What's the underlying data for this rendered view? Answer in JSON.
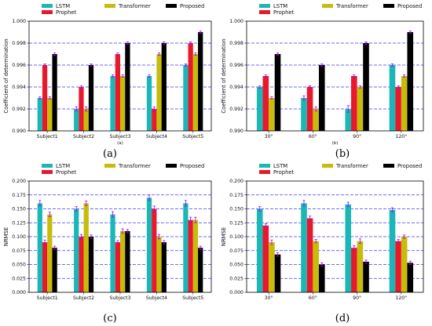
{
  "colors": {
    "LSTM": "#1bb7b7",
    "Prophet": "#e8192c",
    "Transformer": "#c8bc0a",
    "Proposed": "#000000",
    "grid": "#3a3aff",
    "errorbar": "#b000ff"
  },
  "chart_data": [
    {
      "id": "a",
      "type": "bar",
      "caption": "(a)",
      "sublabel": "(a)",
      "ylabel": "Coefficient of determination",
      "ylim": [
        0.99,
        1.0
      ],
      "yticks": [
        "0.990",
        "0.992",
        "0.994",
        "0.996",
        "0.998",
        "1.000"
      ],
      "ytick_values": [
        0.99,
        0.992,
        0.994,
        0.996,
        0.998,
        1.0
      ],
      "categories": [
        "Subject1",
        "Subject2",
        "Subject3",
        "Subject4",
        "Subject5"
      ],
      "series": [
        {
          "name": "LSTM",
          "values": [
            0.993,
            0.992,
            0.995,
            0.995,
            0.996
          ],
          "err": [
            0.0001,
            0.0002,
            0.0001,
            0.0001,
            0.0001
          ]
        },
        {
          "name": "Prophet",
          "values": [
            0.996,
            0.994,
            0.997,
            0.992,
            0.998
          ],
          "err": [
            0.0001,
            0.0001,
            0.0001,
            0.0002,
            0.0001
          ]
        },
        {
          "name": "Transformer",
          "values": [
            0.993,
            0.992,
            0.995,
            0.997,
            0.997
          ],
          "err": [
            0.0001,
            0.0002,
            0.0001,
            0.0001,
            0.0001
          ]
        },
        {
          "name": "Proposed",
          "values": [
            0.997,
            0.996,
            0.998,
            0.998,
            0.999
          ],
          "err": [
            0.0001,
            0.0001,
            0.0001,
            0.0001,
            0.0001
          ]
        }
      ],
      "grid": true,
      "legend": "top"
    },
    {
      "id": "b",
      "type": "bar",
      "caption": "(b)",
      "sublabel": "(b)",
      "ylabel": "Coefficient of determination",
      "ylim": [
        0.99,
        1.0
      ],
      "yticks": [
        "0.990",
        "0.992",
        "0.994",
        "0.996",
        "0.998",
        "1.000"
      ],
      "ytick_values": [
        0.99,
        0.992,
        0.994,
        0.996,
        0.998,
        1.0
      ],
      "categories": [
        "30°",
        "60°",
        "90°",
        "120°"
      ],
      "series": [
        {
          "name": "LSTM",
          "values": [
            0.994,
            0.993,
            0.992,
            0.996
          ],
          "err": [
            0.0001,
            0.0002,
            0.0003,
            0.0001
          ]
        },
        {
          "name": "Prophet",
          "values": [
            0.995,
            0.994,
            0.995,
            0.994
          ],
          "err": [
            0.0001,
            0.0001,
            0.0001,
            0.0001
          ]
        },
        {
          "name": "Transformer",
          "values": [
            0.993,
            0.992,
            0.994,
            0.995
          ],
          "err": [
            0.0001,
            0.0002,
            0.0001,
            0.0001
          ]
        },
        {
          "name": "Proposed",
          "values": [
            0.997,
            0.996,
            0.998,
            0.999
          ],
          "err": [
            0.0001,
            0.0001,
            0.0001,
            0.0001
          ]
        }
      ],
      "grid": true,
      "legend": "top"
    },
    {
      "id": "c",
      "type": "bar",
      "caption": "(c)",
      "ylabel": "NRMSE",
      "ylim": [
        0.0,
        0.2
      ],
      "yticks": [
        "0.000",
        "0.025",
        "0.050",
        "0.075",
        "0.100",
        "0.125",
        "0.150",
        "0.175",
        "0.200"
      ],
      "ytick_values": [
        0.0,
        0.025,
        0.05,
        0.075,
        0.1,
        0.125,
        0.15,
        0.175,
        0.2
      ],
      "categories": [
        "Subject1",
        "Subject2",
        "Subject3",
        "Subject4",
        "Subject5"
      ],
      "series": [
        {
          "name": "LSTM",
          "values": [
            0.16,
            0.15,
            0.14,
            0.17,
            0.16
          ],
          "err": [
            0.005,
            0.004,
            0.005,
            0.005,
            0.005
          ]
        },
        {
          "name": "Prophet",
          "values": [
            0.09,
            0.1,
            0.09,
            0.15,
            0.13
          ],
          "err": [
            0.004,
            0.004,
            0.003,
            0.005,
            0.005
          ]
        },
        {
          "name": "Transformer",
          "values": [
            0.14,
            0.16,
            0.11,
            0.1,
            0.13
          ],
          "err": [
            0.004,
            0.004,
            0.004,
            0.004,
            0.005
          ]
        },
        {
          "name": "Proposed",
          "values": [
            0.08,
            0.1,
            0.11,
            0.09,
            0.08
          ],
          "err": [
            0.003,
            0.003,
            0.003,
            0.003,
            0.003
          ]
        }
      ],
      "grid": true,
      "legend": "top"
    },
    {
      "id": "d",
      "type": "bar",
      "caption": "(d)",
      "ylabel": "NRMSE",
      "ylim": [
        0.0,
        0.2
      ],
      "yticks": [
        "0.000",
        "0.025",
        "0.050",
        "0.075",
        "0.100",
        "0.125",
        "0.150",
        "0.175",
        "0.200"
      ],
      "ytick_values": [
        0.0,
        0.025,
        0.05,
        0.075,
        0.1,
        0.125,
        0.15,
        0.175,
        0.2
      ],
      "categories": [
        "30°",
        "60°",
        "90°",
        "120°"
      ],
      "series": [
        {
          "name": "LSTM",
          "values": [
            0.15,
            0.16,
            0.158,
            0.148
          ],
          "err": [
            0.004,
            0.005,
            0.004,
            0.004
          ]
        },
        {
          "name": "Prophet",
          "values": [
            0.12,
            0.133,
            0.08,
            0.092
          ],
          "err": [
            0.003,
            0.004,
            0.004,
            0.003
          ]
        },
        {
          "name": "Transformer",
          "values": [
            0.09,
            0.092,
            0.092,
            0.1
          ],
          "err": [
            0.004,
            0.003,
            0.004,
            0.003
          ]
        },
        {
          "name": "Proposed",
          "values": [
            0.068,
            0.05,
            0.055,
            0.053
          ],
          "err": [
            0.003,
            0.003,
            0.003,
            0.003
          ]
        }
      ],
      "grid": true,
      "legend": "top"
    }
  ]
}
